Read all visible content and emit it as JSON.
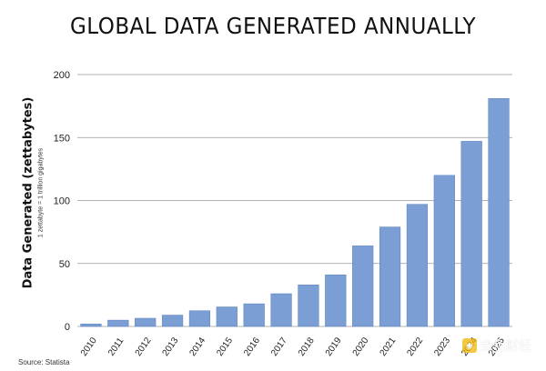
{
  "chart_data": {
    "type": "bar",
    "title": "GLOBAL DATA GENERATED ANNUALLY",
    "ylabel": "Data Generated (zettabytes)",
    "ylabel_note": "1 zettabyte = 1 trillion gigabytes",
    "xlabel": "",
    "categories": [
      "2010",
      "2011",
      "2012",
      "2013",
      "2014",
      "2015",
      "2016",
      "2017",
      "2018",
      "2019",
      "2020",
      "2021",
      "2022",
      "2023",
      "2024",
      "2025"
    ],
    "values": [
      2,
      5,
      6.5,
      9,
      12.5,
      15.5,
      18,
      26,
      33,
      41,
      64,
      79,
      97,
      120,
      147,
      181
    ],
    "ylim": [
      0,
      200
    ],
    "yticks": [
      0,
      50,
      100,
      150,
      200
    ],
    "grid": true,
    "bar_color": "#7b9ed4",
    "bar_edge_color": "#5a7fbf",
    "gridline_color": "#999999",
    "source": "Source: Statista"
  },
  "watermark": {
    "text": "金色财经"
  }
}
